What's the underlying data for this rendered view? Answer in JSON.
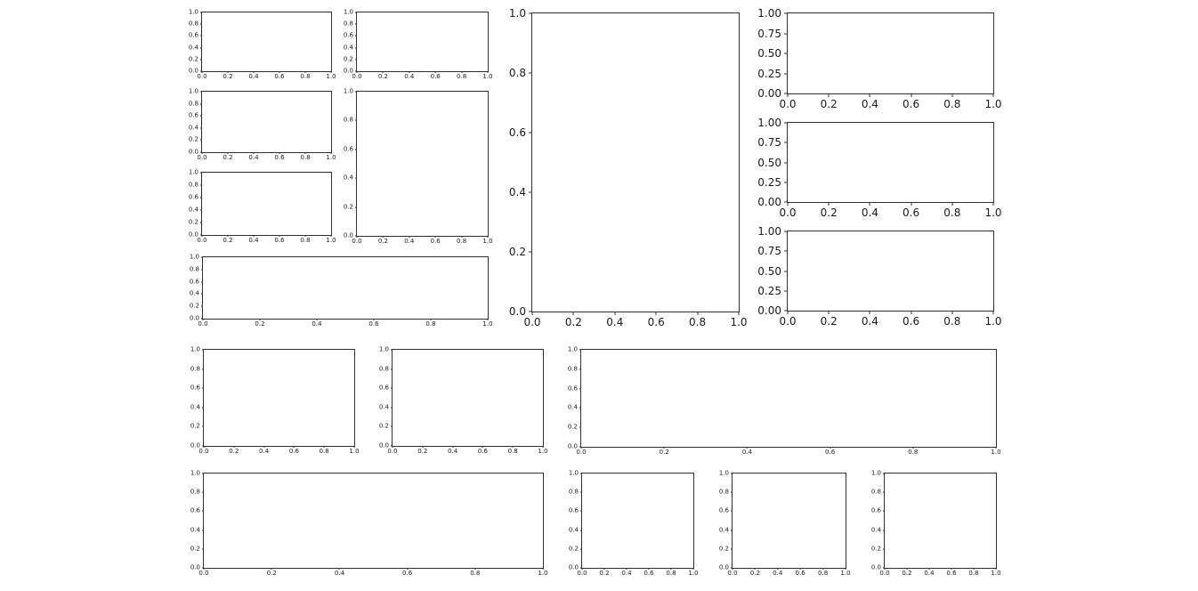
{
  "figure": {
    "background": "#ffffff",
    "spine_color": "#2f2f2f",
    "tick_label_color": "#1a1a1a"
  },
  "chart_data": [
    {
      "id": "left-block-row1-col1",
      "type": "line",
      "series": [],
      "title": "",
      "xlabel": "",
      "ylabel": "",
      "xlim": [
        0.0,
        1.0
      ],
      "ylim": [
        0.0,
        1.0
      ],
      "grid": false,
      "legend": false,
      "ytick_labels": [
        "1.0",
        "0.8",
        "0.6",
        "0.4",
        "0.2",
        "0.0"
      ],
      "xtick_labels": [
        "0.0",
        "0.2",
        "0.4",
        "0.6",
        "0.8",
        "1.0"
      ]
    },
    {
      "id": "left-block-row1-col2",
      "type": "line",
      "series": [],
      "title": "",
      "xlabel": "",
      "ylabel": "",
      "xlim": [
        0.0,
        1.0
      ],
      "ylim": [
        0.0,
        1.0
      ],
      "grid": false,
      "legend": false,
      "ytick_labels": [
        "1.0",
        "0.8",
        "0.6",
        "0.4",
        "0.2",
        "0.0"
      ],
      "xtick_labels": [
        "0.0",
        "0.2",
        "0.4",
        "0.6",
        "0.8",
        "1.0"
      ]
    },
    {
      "id": "left-block-row2-col1",
      "type": "line",
      "series": [],
      "title": "",
      "xlabel": "",
      "ylabel": "",
      "xlim": [
        0.0,
        1.0
      ],
      "ylim": [
        0.0,
        1.0
      ],
      "grid": false,
      "legend": false,
      "ytick_labels": [
        "1.0",
        "0.8",
        "0.6",
        "0.4",
        "0.2",
        "0.0"
      ],
      "xtick_labels": [
        "0.0",
        "0.2",
        "0.4",
        "0.6",
        "0.8",
        "1.0"
      ]
    },
    {
      "id": "left-block-row2-3-col2-tall",
      "type": "line",
      "series": [],
      "title": "",
      "xlabel": "",
      "ylabel": "",
      "xlim": [
        0.0,
        1.0
      ],
      "ylim": [
        0.0,
        1.0
      ],
      "grid": false,
      "legend": false,
      "ytick_labels": [
        "1.0",
        "0.8",
        "0.6",
        "0.4",
        "0.2",
        "0.0"
      ],
      "xtick_labels": [
        "0.0",
        "0.2",
        "0.4",
        "0.6",
        "0.8",
        "1.0"
      ]
    },
    {
      "id": "left-block-row3-col1",
      "type": "line",
      "series": [],
      "title": "",
      "xlabel": "",
      "ylabel": "",
      "xlim": [
        0.0,
        1.0
      ],
      "ylim": [
        0.0,
        1.0
      ],
      "grid": false,
      "legend": false,
      "ytick_labels": [
        "1.0",
        "0.8",
        "0.6",
        "0.4",
        "0.2",
        "0.0"
      ],
      "xtick_labels": [
        "0.0",
        "0.2",
        "0.4",
        "0.6",
        "0.8",
        "1.0"
      ]
    },
    {
      "id": "left-block-row4-wide",
      "type": "line",
      "series": [],
      "title": "",
      "xlabel": "",
      "ylabel": "",
      "xlim": [
        0.0,
        1.0
      ],
      "ylim": [
        0.0,
        1.0
      ],
      "grid": false,
      "legend": false,
      "ytick_labels": [
        "1.0",
        "0.8",
        "0.6",
        "0.4",
        "0.2",
        "0.0"
      ],
      "xtick_labels": [
        "0.0",
        "0.2",
        "0.4",
        "0.6",
        "0.8",
        "1.0"
      ]
    },
    {
      "id": "center-large",
      "type": "line",
      "series": [],
      "title": "",
      "xlabel": "",
      "ylabel": "",
      "xlim": [
        0.0,
        1.0
      ],
      "ylim": [
        0.0,
        1.0
      ],
      "grid": false,
      "legend": false,
      "ytick_labels": [
        "1.0",
        "0.8",
        "0.6",
        "0.4",
        "0.2",
        "0.0"
      ],
      "xtick_labels": [
        "0.0",
        "0.2",
        "0.4",
        "0.6",
        "0.8",
        "1.0"
      ]
    },
    {
      "id": "right-col-row1",
      "type": "line",
      "series": [],
      "title": "",
      "xlabel": "",
      "ylabel": "",
      "xlim": [
        0.0,
        1.0
      ],
      "ylim": [
        0.0,
        1.0
      ],
      "grid": false,
      "legend": false,
      "ytick_labels": [
        "1.00",
        "0.75",
        "0.50",
        "0.25",
        "0.00"
      ],
      "xtick_labels": [
        "0.0",
        "0.2",
        "0.4",
        "0.6",
        "0.8",
        "1.0"
      ]
    },
    {
      "id": "right-col-row2",
      "type": "line",
      "series": [],
      "title": "",
      "xlabel": "",
      "ylabel": "",
      "xlim": [
        0.0,
        1.0
      ],
      "ylim": [
        0.0,
        1.0
      ],
      "grid": false,
      "legend": false,
      "ytick_labels": [
        "1.00",
        "0.75",
        "0.50",
        "0.25",
        "0.00"
      ],
      "xtick_labels": [
        "0.0",
        "0.2",
        "0.4",
        "0.6",
        "0.8",
        "1.0"
      ]
    },
    {
      "id": "right-col-row3",
      "type": "line",
      "series": [],
      "title": "",
      "xlabel": "",
      "ylabel": "",
      "xlim": [
        0.0,
        1.0
      ],
      "ylim": [
        0.0,
        1.0
      ],
      "grid": false,
      "legend": false,
      "ytick_labels": [
        "1.00",
        "0.75",
        "0.50",
        "0.25",
        "0.00"
      ],
      "xtick_labels": [
        "0.0",
        "0.2",
        "0.4",
        "0.6",
        "0.8",
        "1.0"
      ]
    },
    {
      "id": "bottom-row1-col1",
      "type": "line",
      "series": [],
      "title": "",
      "xlabel": "",
      "ylabel": "",
      "xlim": [
        0.0,
        1.0
      ],
      "ylim": [
        0.0,
        1.0
      ],
      "grid": false,
      "legend": false,
      "ytick_labels": [
        "1.0",
        "0.8",
        "0.6",
        "0.4",
        "0.2",
        "0.0"
      ],
      "xtick_labels": [
        "0.0",
        "0.2",
        "0.4",
        "0.6",
        "0.8",
        "1.0"
      ]
    },
    {
      "id": "bottom-row1-col2",
      "type": "line",
      "series": [],
      "title": "",
      "xlabel": "",
      "ylabel": "",
      "xlim": [
        0.0,
        1.0
      ],
      "ylim": [
        0.0,
        1.0
      ],
      "grid": false,
      "legend": false,
      "ytick_labels": [
        "1.0",
        "0.8",
        "0.6",
        "0.4",
        "0.2",
        "0.0"
      ],
      "xtick_labels": [
        "0.0",
        "0.2",
        "0.4",
        "0.6",
        "0.8",
        "1.0"
      ]
    },
    {
      "id": "bottom-row1-wide",
      "type": "line",
      "series": [],
      "title": "",
      "xlabel": "",
      "ylabel": "",
      "xlim": [
        0.0,
        1.0
      ],
      "ylim": [
        0.0,
        1.0
      ],
      "grid": false,
      "legend": false,
      "ytick_labels": [
        "1.0",
        "0.8",
        "0.6",
        "0.4",
        "0.2",
        "0.0"
      ],
      "xtick_labels": [
        "0.0",
        "0.2",
        "0.4",
        "0.6",
        "0.8",
        "1.0"
      ]
    },
    {
      "id": "bottom-row2-wide",
      "type": "line",
      "series": [],
      "title": "",
      "xlabel": "",
      "ylabel": "",
      "xlim": [
        0.0,
        1.0
      ],
      "ylim": [
        0.0,
        1.0
      ],
      "grid": false,
      "legend": false,
      "ytick_labels": [
        "1.0",
        "0.8",
        "0.6",
        "0.4",
        "0.2",
        "0.0"
      ],
      "xtick_labels": [
        "0.0",
        "0.2",
        "0.4",
        "0.6",
        "0.8",
        "1.0"
      ]
    },
    {
      "id": "bottom-row2-col2",
      "type": "line",
      "series": [],
      "title": "",
      "xlabel": "",
      "ylabel": "",
      "xlim": [
        0.0,
        1.0
      ],
      "ylim": [
        0.0,
        1.0
      ],
      "grid": false,
      "legend": false,
      "ytick_labels": [
        "1.0",
        "0.8",
        "0.6",
        "0.4",
        "0.2",
        "0.0"
      ],
      "xtick_labels": [
        "0.0",
        "0.2",
        "0.4",
        "0.6",
        "0.8",
        "1.0"
      ]
    },
    {
      "id": "bottom-row2-col3",
      "type": "line",
      "series": [],
      "title": "",
      "xlabel": "",
      "ylabel": "",
      "xlim": [
        0.0,
        1.0
      ],
      "ylim": [
        0.0,
        1.0
      ],
      "grid": false,
      "legend": false,
      "ytick_labels": [
        "1.0",
        "0.8",
        "0.6",
        "0.4",
        "0.2",
        "0.0"
      ],
      "xtick_labels": [
        "0.0",
        "0.2",
        "0.4",
        "0.6",
        "0.8",
        "1.0"
      ]
    },
    {
      "id": "bottom-row2-col4",
      "type": "line",
      "series": [],
      "title": "",
      "xlabel": "",
      "ylabel": "",
      "xlim": [
        0.0,
        1.0
      ],
      "ylim": [
        0.0,
        1.0
      ],
      "grid": false,
      "legend": false,
      "ytick_labels": [
        "1.0",
        "0.8",
        "0.6",
        "0.4",
        "0.2",
        "0.0"
      ],
      "xtick_labels": [
        "0.0",
        "0.2",
        "0.4",
        "0.6",
        "0.8",
        "1.0"
      ]
    }
  ]
}
